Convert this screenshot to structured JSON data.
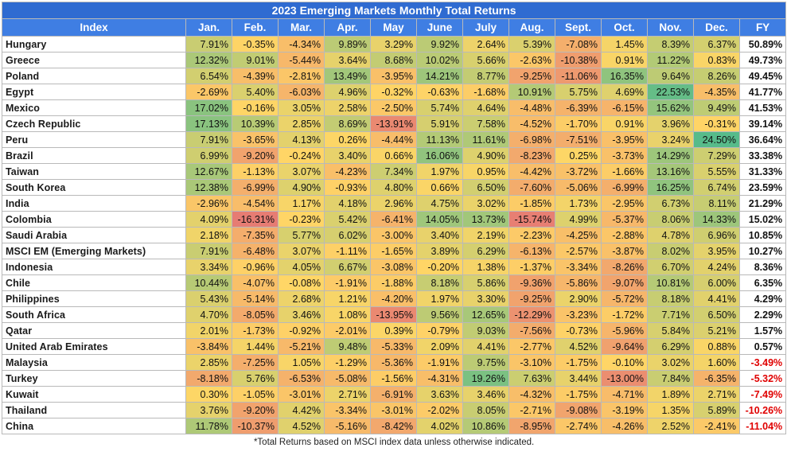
{
  "title": "2023 Emerging Markets Monthly Total Returns",
  "columns": [
    "Index",
    "Jan.",
    "Feb.",
    "Mar.",
    "Apr.",
    "May",
    "June",
    "July",
    "Aug.",
    "Sept.",
    "Oct.",
    "Nov.",
    "Dec.",
    "FY"
  ],
  "rows": [
    {
      "name": "Hungary",
      "values": [
        "7.91%",
        "-0.35%",
        "-4.34%",
        "9.89%",
        "3.29%",
        "9.92%",
        "2.64%",
        "5.39%",
        "-7.08%",
        "1.45%",
        "8.39%",
        "6.37%",
        "50.89%"
      ]
    },
    {
      "name": "Greece",
      "values": [
        "12.32%",
        "9.01%",
        "-5.44%",
        "3.64%",
        "8.68%",
        "10.02%",
        "5.66%",
        "-2.63%",
        "-10.38%",
        "0.91%",
        "11.22%",
        "0.83%",
        "49.73%"
      ]
    },
    {
      "name": "Poland",
      "values": [
        "6.54%",
        "-4.39%",
        "-2.81%",
        "13.49%",
        "-3.95%",
        "14.21%",
        "8.77%",
        "-9.25%",
        "-11.06%",
        "16.35%",
        "9.64%",
        "8.26%",
        "49.45%"
      ]
    },
    {
      "name": "Egypt",
      "values": [
        "-2.69%",
        "5.40%",
        "-6.03%",
        "4.96%",
        "-0.32%",
        "-0.63%",
        "-1.68%",
        "10.91%",
        "5.75%",
        "4.69%",
        "22.53%",
        "-4.35%",
        "41.77%"
      ]
    },
    {
      "name": "Mexico",
      "values": [
        "17.02%",
        "-0.16%",
        "3.05%",
        "2.58%",
        "-2.50%",
        "5.74%",
        "4.64%",
        "-4.48%",
        "-6.39%",
        "-6.15%",
        "15.62%",
        "9.49%",
        "41.53%"
      ]
    },
    {
      "name": "Czech Republic",
      "values": [
        "17.13%",
        "10.39%",
        "2.85%",
        "8.69%",
        "-13.91%",
        "5.91%",
        "7.58%",
        "-4.52%",
        "-1.70%",
        "0.91%",
        "3.96%",
        "-0.31%",
        "39.14%"
      ]
    },
    {
      "name": "Peru",
      "values": [
        "7.91%",
        "-3.65%",
        "4.13%",
        "0.26%",
        "-4.44%",
        "11.13%",
        "11.61%",
        "-6.98%",
        "-7.51%",
        "-3.95%",
        "3.24%",
        "24.50%",
        "36.64%"
      ]
    },
    {
      "name": "Brazil",
      "values": [
        "6.99%",
        "-9.20%",
        "-0.24%",
        "3.40%",
        "0.66%",
        "16.06%",
        "4.90%",
        "-8.23%",
        "0.25%",
        "-3.73%",
        "14.29%",
        "7.29%",
        "33.38%"
      ]
    },
    {
      "name": "Taiwan",
      "values": [
        "12.67%",
        "-1.13%",
        "3.07%",
        "-4.23%",
        "7.34%",
        "1.97%",
        "0.95%",
        "-4.42%",
        "-3.72%",
        "-1.66%",
        "13.16%",
        "5.55%",
        "31.33%"
      ]
    },
    {
      "name": "South Korea",
      "values": [
        "12.38%",
        "-6.99%",
        "4.90%",
        "-0.93%",
        "4.80%",
        "0.66%",
        "6.50%",
        "-7.60%",
        "-5.06%",
        "-6.99%",
        "16.25%",
        "6.74%",
        "23.59%"
      ]
    },
    {
      "name": "India",
      "values": [
        "-2.96%",
        "-4.54%",
        "1.17%",
        "4.18%",
        "2.96%",
        "4.75%",
        "3.02%",
        "-1.85%",
        "1.73%",
        "-2.95%",
        "6.73%",
        "8.11%",
        "21.29%"
      ]
    },
    {
      "name": "Colombia",
      "values": [
        "4.09%",
        "-16.31%",
        "-0.23%",
        "5.42%",
        "-6.41%",
        "14.05%",
        "13.73%",
        "-15.74%",
        "4.99%",
        "-5.37%",
        "8.06%",
        "14.33%",
        "15.02%"
      ]
    },
    {
      "name": "Saudi Arabia",
      "values": [
        "2.18%",
        "-7.35%",
        "5.77%",
        "6.02%",
        "-3.00%",
        "3.40%",
        "2.19%",
        "-2.23%",
        "-4.25%",
        "-2.88%",
        "4.78%",
        "6.96%",
        "10.85%"
      ]
    },
    {
      "name": "MSCI EM (Emerging Markets)",
      "values": [
        "7.91%",
        "-6.48%",
        "3.07%",
        "-1.11%",
        "-1.65%",
        "3.89%",
        "6.29%",
        "-6.13%",
        "-2.57%",
        "-3.87%",
        "8.02%",
        "3.95%",
        "10.27%"
      ]
    },
    {
      "name": "Indonesia",
      "values": [
        "3.34%",
        "-0.96%",
        "4.05%",
        "6.67%",
        "-3.08%",
        "-0.20%",
        "1.38%",
        "-1.37%",
        "-3.34%",
        "-8.26%",
        "6.70%",
        "4.24%",
        "8.36%"
      ]
    },
    {
      "name": "Chile",
      "values": [
        "10.44%",
        "-4.07%",
        "-0.08%",
        "-1.91%",
        "-1.88%",
        "8.18%",
        "5.86%",
        "-9.36%",
        "-5.86%",
        "-9.07%",
        "10.81%",
        "6.00%",
        "6.35%"
      ]
    },
    {
      "name": "Philippines",
      "values": [
        "5.43%",
        "-5.14%",
        "2.68%",
        "1.21%",
        "-4.20%",
        "1.97%",
        "3.30%",
        "-9.25%",
        "2.90%",
        "-5.72%",
        "8.18%",
        "4.41%",
        "4.29%"
      ]
    },
    {
      "name": "South Africa",
      "values": [
        "4.70%",
        "-8.05%",
        "3.46%",
        "1.08%",
        "-13.95%",
        "9.56%",
        "12.65%",
        "-12.29%",
        "-3.23%",
        "-1.72%",
        "7.71%",
        "6.50%",
        "2.29%"
      ]
    },
    {
      "name": "Qatar",
      "values": [
        "2.01%",
        "-1.73%",
        "-0.92%",
        "-2.01%",
        "0.39%",
        "-0.79%",
        "9.03%",
        "-7.56%",
        "-0.73%",
        "-5.96%",
        "5.84%",
        "5.21%",
        "1.57%"
      ]
    },
    {
      "name": "United Arab Emirates",
      "values": [
        "-3.84%",
        "1.44%",
        "-5.21%",
        "9.48%",
        "-5.33%",
        "2.09%",
        "4.41%",
        "-2.77%",
        "4.52%",
        "-9.64%",
        "6.29%",
        "0.88%",
        "0.57%"
      ]
    },
    {
      "name": "Malaysia",
      "values": [
        "2.85%",
        "-7.25%",
        "1.05%",
        "-1.29%",
        "-5.36%",
        "-1.91%",
        "9.75%",
        "-3.10%",
        "-1.75%",
        "-0.10%",
        "3.02%",
        "1.60%",
        "-3.49%"
      ]
    },
    {
      "name": "Turkey",
      "values": [
        "-8.18%",
        "5.76%",
        "-6.53%",
        "-5.08%",
        "-1.56%",
        "-4.31%",
        "19.26%",
        "7.63%",
        "3.44%",
        "-13.00%",
        "7.84%",
        "-6.35%",
        "-5.32%"
      ]
    },
    {
      "name": "Kuwait",
      "values": [
        "0.30%",
        "-1.05%",
        "-3.01%",
        "2.71%",
        "-6.91%",
        "3.63%",
        "3.46%",
        "-4.32%",
        "-1.75%",
        "-4.71%",
        "1.89%",
        "2.71%",
        "-7.49%"
      ]
    },
    {
      "name": "Thailand",
      "values": [
        "3.76%",
        "-9.20%",
        "4.42%",
        "-3.34%",
        "-3.01%",
        "-2.02%",
        "8.05%",
        "-2.71%",
        "-9.08%",
        "-3.19%",
        "1.35%",
        "5.89%",
        "-10.26%"
      ]
    },
    {
      "name": "China",
      "values": [
        "11.78%",
        "-10.37%",
        "4.52%",
        "-5.16%",
        "-8.42%",
        "4.02%",
        "10.86%",
        "-8.95%",
        "-2.74%",
        "-4.26%",
        "2.52%",
        "-2.41%",
        "-11.04%"
      ]
    }
  ],
  "footnote": "*Total Returns based on MSCI index data unless otherwise indicated.",
  "colors": {
    "negative_max": "#e67c73",
    "midpoint": "#ffd666",
    "positive_max": "#57bb8a",
    "header_bg": "#3f7ee3",
    "title_bg": "#2f6bd1",
    "fy_negative_text": "#e00000"
  }
}
